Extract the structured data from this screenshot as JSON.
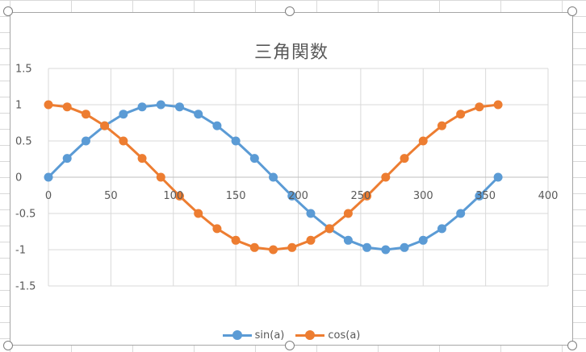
{
  "chart_data": {
    "type": "line",
    "title": "三角関数",
    "xlabel": "",
    "ylabel": "",
    "xlim": [
      0,
      400
    ],
    "ylim": [
      -1.5,
      1.5
    ],
    "x_ticks": [
      0,
      50,
      100,
      150,
      200,
      250,
      300,
      350,
      400
    ],
    "y_ticks": [
      1.5,
      1,
      0.5,
      0,
      -0.5,
      -1,
      -1.5
    ],
    "grid": true,
    "legend_position": "bottom",
    "x": [
      0,
      15,
      30,
      45,
      60,
      75,
      90,
      105,
      120,
      135,
      150,
      165,
      180,
      195,
      210,
      225,
      240,
      255,
      270,
      285,
      300,
      315,
      330,
      345,
      360
    ],
    "series": [
      {
        "name": "sin(a)",
        "color": "#5b9bd5",
        "values": [
          0,
          0.26,
          0.5,
          0.71,
          0.87,
          0.97,
          1,
          0.97,
          0.87,
          0.71,
          0.5,
          0.26,
          0,
          -0.26,
          -0.5,
          -0.71,
          -0.87,
          -0.97,
          -1,
          -0.97,
          -0.87,
          -0.71,
          -0.5,
          -0.26,
          0
        ]
      },
      {
        "name": "cos(a)",
        "color": "#ed7d31",
        "values": [
          1,
          0.97,
          0.87,
          0.71,
          0.5,
          0.26,
          0,
          -0.26,
          -0.5,
          -0.71,
          -0.87,
          -0.97,
          -1,
          -0.97,
          -0.87,
          -0.71,
          -0.5,
          -0.26,
          0,
          0.26,
          0.5,
          0.71,
          0.87,
          0.97,
          1
        ]
      }
    ]
  }
}
